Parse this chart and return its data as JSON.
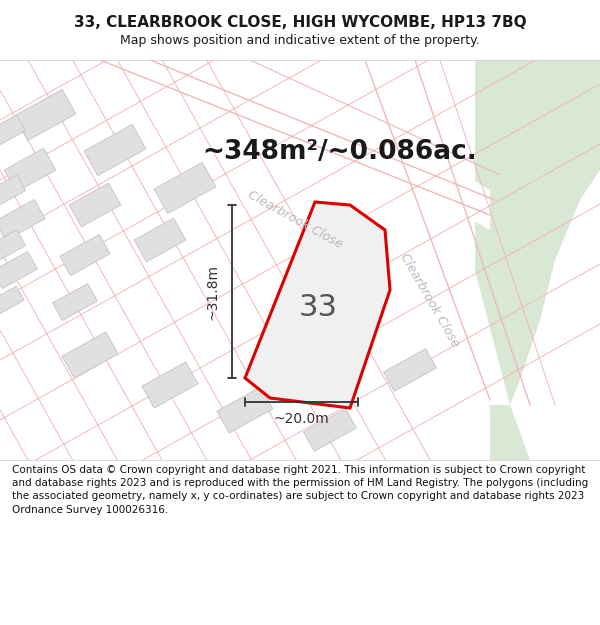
{
  "title": "33, CLEARBROOK CLOSE, HIGH WYCOMBE, HP13 7BQ",
  "subtitle": "Map shows position and indicative extent of the property.",
  "area_text": "~348m²/~0.086ac.",
  "property_number": "33",
  "dim_horizontal": "~20.0m",
  "dim_vertical": "~31.8m",
  "road_label_top": "Clearbrook Close",
  "road_label_right": "Clearbrook Close",
  "footer": "Contains OS data © Crown copyright and database right 2021. This information is subject to Crown copyright and database rights 2023 and is reproduced with the permission of HM Land Registry. The polygons (including the associated geometry, namely x, y co-ordinates) are subject to Crown copyright and database rights 2023 Ordnance Survey 100026316.",
  "bg_map_color": "#f5f0eb",
  "bg_white_color": "#ffffff",
  "bg_green_color": "#d8e8d5",
  "building_fill_color": "#e0e0e0",
  "building_edge_color": "#c8c8c8",
  "property_outline_color": "#dd0000",
  "property_fill_color": "#f0f0f0",
  "road_line_color": "#f0b8b8",
  "road_fill_color": "#ffffff",
  "dim_line_color": "#333333",
  "road_label_color": "#bbbbbb",
  "title_color": "#1a1a1a",
  "area_text_color": "#1a1a1a",
  "property_label_color": "#555555",
  "footer_text_color": "#111111",
  "sep_line_color": "#cccccc",
  "title_fontsize": 11,
  "subtitle_fontsize": 9,
  "area_fontsize": 19,
  "prop_label_fontsize": 22,
  "road_label_fontsize": 9,
  "dim_fontsize": 10,
  "footer_fontsize": 7.5
}
